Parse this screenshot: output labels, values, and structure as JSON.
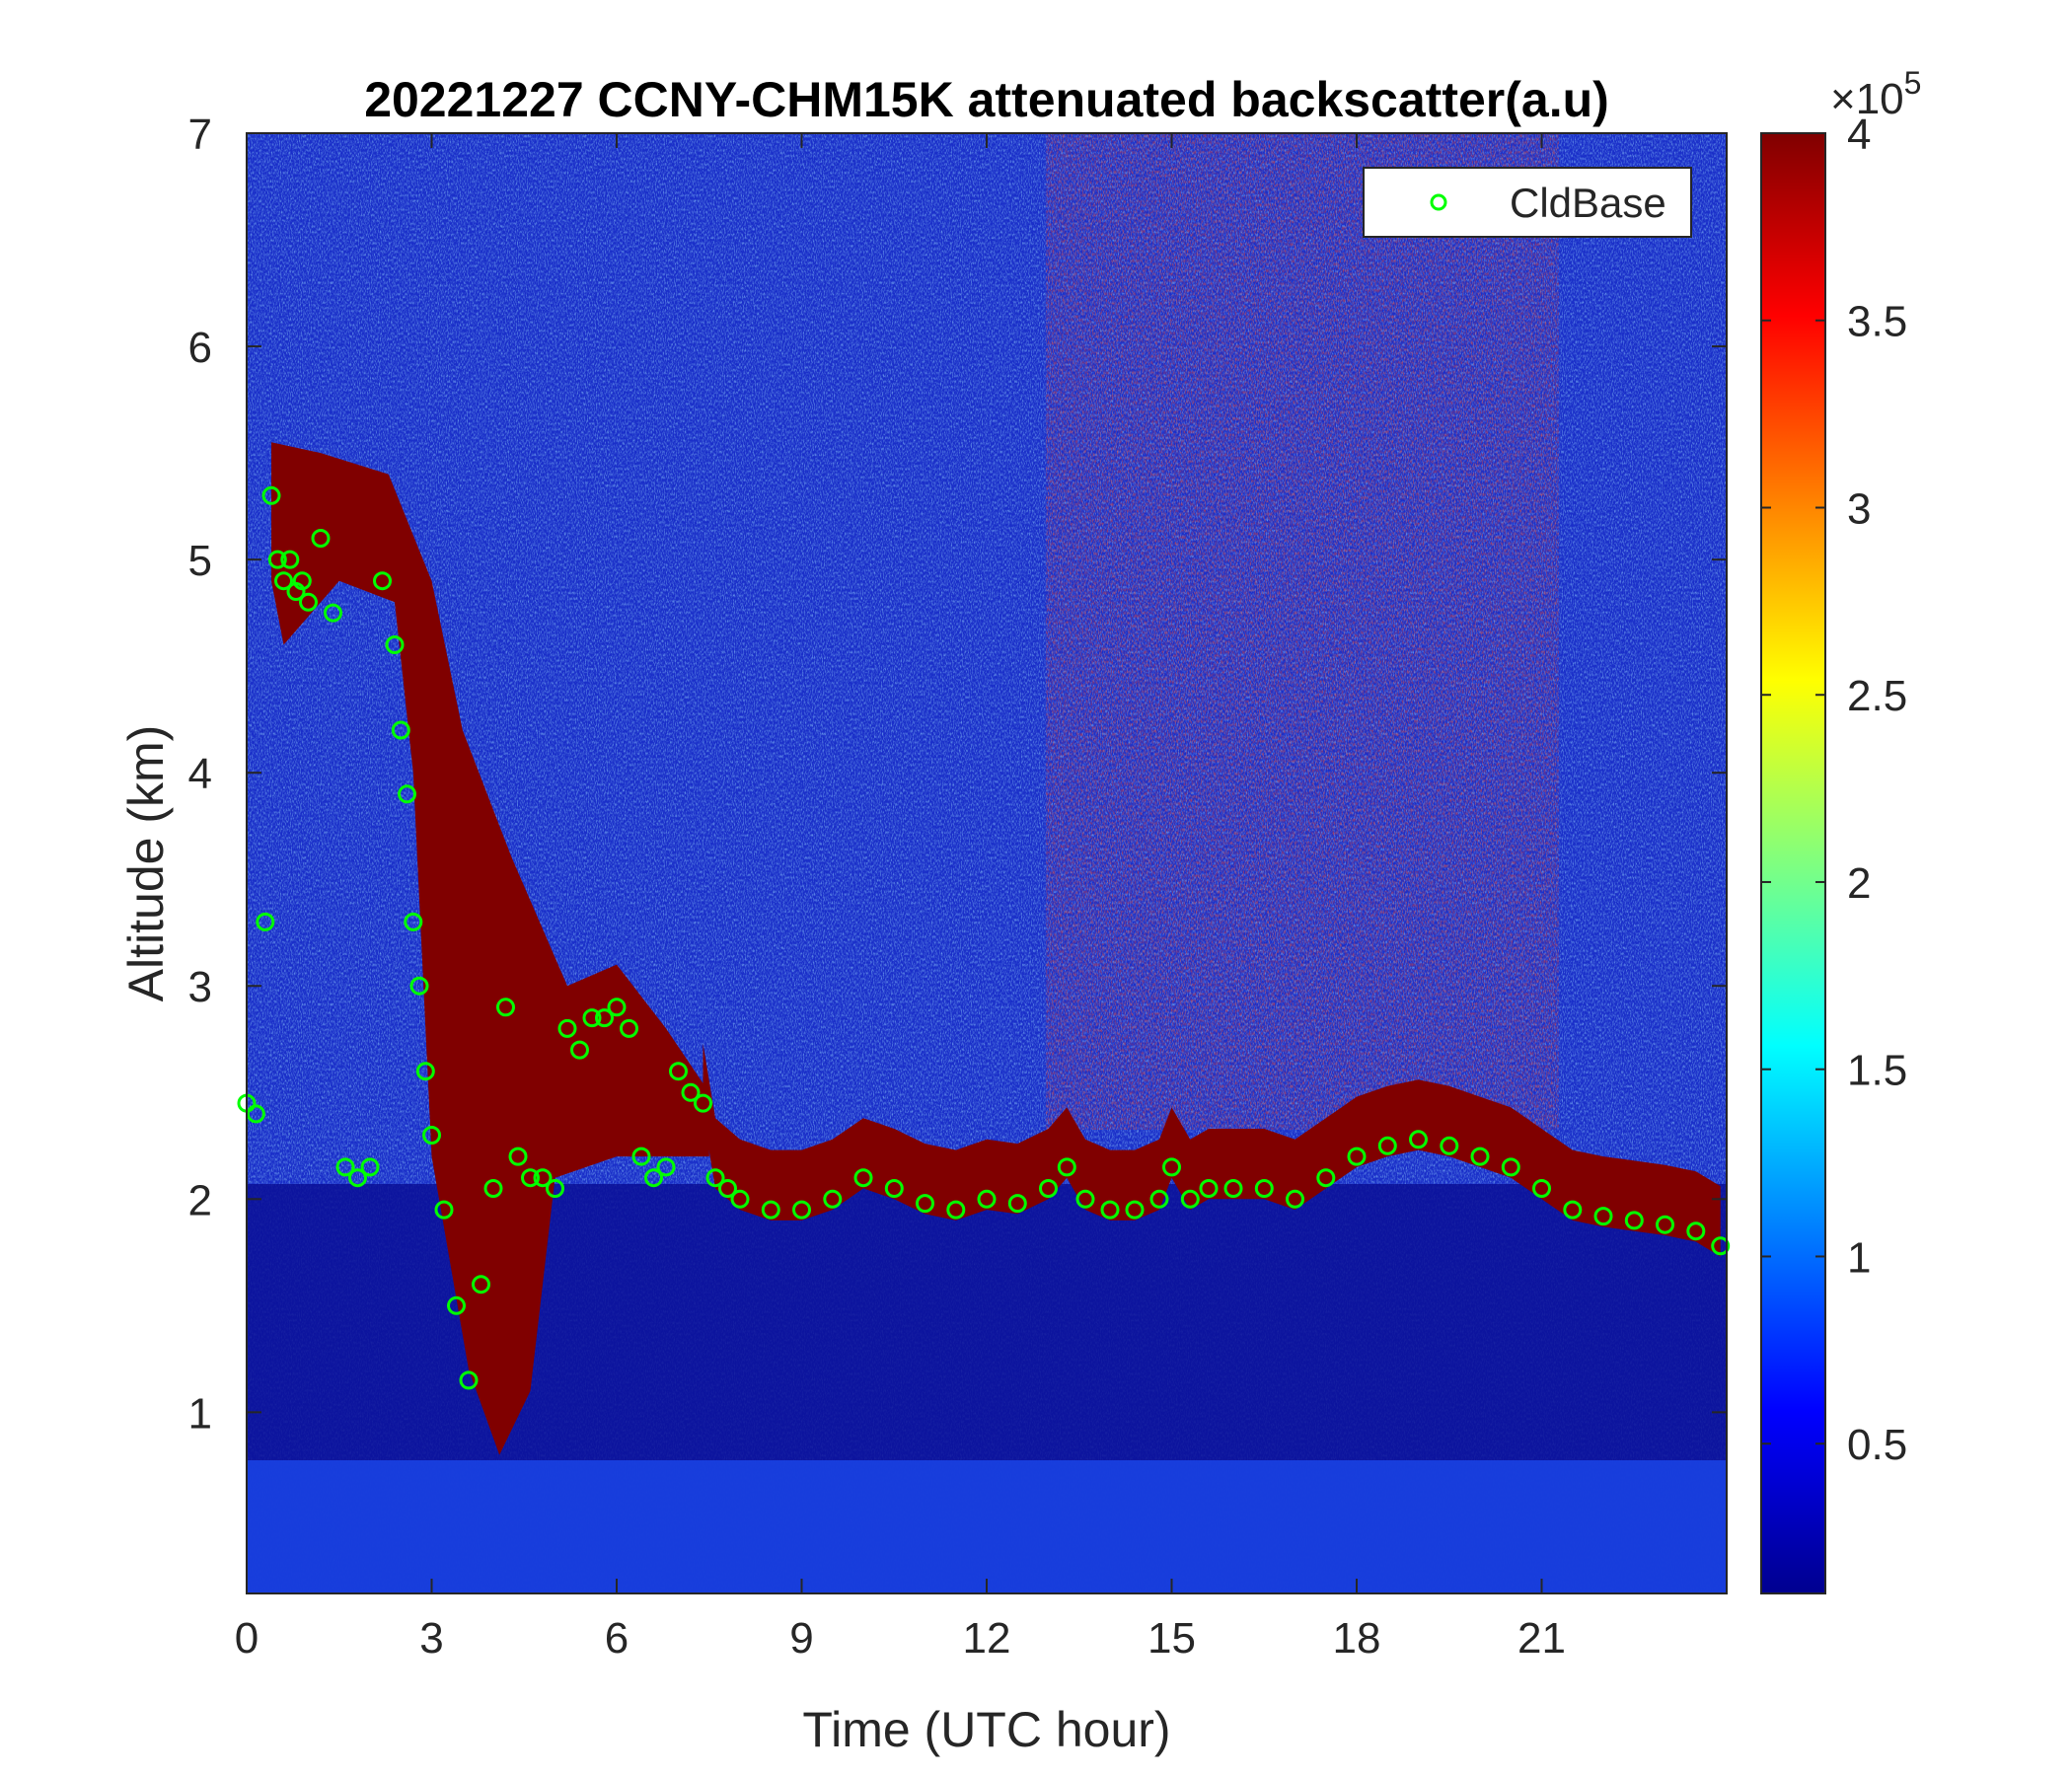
{
  "chart_data": {
    "type": "heatmap",
    "title": "20221227 CCNY-CHM15K attenuated backscatter(a.u)",
    "xlabel": "Time (UTC hour)",
    "ylabel": "Altitude (km)",
    "xlim": [
      0,
      24
    ],
    "ylim": [
      0.15,
      7
    ],
    "xticks": [
      0,
      3,
      6,
      9,
      12,
      15,
      18,
      21
    ],
    "xtick_labels": [
      "0",
      "3",
      "6",
      "9",
      "12",
      "15",
      "18",
      "21"
    ],
    "yticks": [
      1,
      2,
      3,
      4,
      5,
      6,
      7
    ],
    "ytick_labels": [
      "1",
      "2",
      "3",
      "4",
      "5",
      "6",
      "7"
    ],
    "colorbar": {
      "colormap": "jet",
      "range": [
        0.1,
        4
      ],
      "ticks": [
        0.5,
        1,
        1.5,
        2,
        2.5,
        3,
        3.5,
        4
      ],
      "tick_labels": [
        "0.5",
        "1",
        "1.5",
        "2",
        "2.5",
        "3",
        "3.5",
        "4"
      ],
      "multiplier_base": "×10",
      "multiplier_exponent": "5"
    },
    "grid": false,
    "legend": {
      "location": "top-right",
      "entries": [
        "CldBase"
      ]
    },
    "series": [
      {
        "name": "CldBase",
        "marker": "circle",
        "color": "#00ff00",
        "x": [
          0.0,
          0.15,
          0.3,
          0.4,
          0.5,
          0.6,
          0.7,
          0.8,
          0.9,
          1.0,
          1.2,
          1.4,
          1.6,
          1.8,
          2.0,
          2.2,
          2.4,
          2.5,
          2.6,
          2.7,
          2.8,
          2.9,
          3.0,
          3.2,
          3.4,
          3.6,
          3.8,
          4.0,
          4.2,
          4.4,
          4.6,
          4.8,
          5.0,
          5.2,
          5.4,
          5.6,
          5.8,
          6.0,
          6.2,
          6.4,
          6.6,
          6.8,
          7.0,
          7.2,
          7.4,
          7.6,
          7.8,
          8.0,
          8.5,
          9.0,
          9.5,
          10.0,
          10.5,
          11.0,
          11.5,
          12.0,
          12.5,
          13.0,
          13.3,
          13.6,
          14.0,
          14.4,
          14.8,
          15.0,
          15.3,
          15.6,
          16.0,
          16.5,
          17.0,
          17.5,
          18.0,
          18.5,
          19.0,
          19.5,
          20.0,
          20.5,
          21.0,
          21.5,
          22.0,
          22.5,
          23.0,
          23.5,
          23.9
        ],
        "y": [
          2.45,
          2.4,
          3.3,
          5.3,
          5.0,
          4.9,
          5.0,
          4.85,
          4.9,
          4.8,
          5.1,
          4.75,
          2.15,
          2.1,
          2.15,
          4.9,
          4.6,
          4.2,
          3.9,
          3.3,
          3.0,
          2.6,
          2.3,
          1.95,
          1.5,
          1.15,
          1.6,
          2.05,
          2.9,
          2.2,
          2.1,
          2.1,
          2.05,
          2.8,
          2.7,
          2.85,
          2.85,
          2.9,
          2.8,
          2.2,
          2.1,
          2.15,
          2.6,
          2.5,
          2.45,
          2.1,
          2.05,
          2.0,
          1.95,
          1.95,
          2.0,
          2.1,
          2.05,
          1.98,
          1.95,
          2.0,
          1.98,
          2.05,
          2.15,
          2.0,
          1.95,
          1.95,
          2.0,
          2.15,
          2.0,
          2.05,
          2.05,
          2.05,
          2.0,
          2.1,
          2.2,
          2.25,
          2.28,
          2.25,
          2.2,
          2.15,
          2.05,
          1.95,
          1.92,
          1.9,
          1.88,
          1.85,
          1.78
        ]
      }
    ]
  }
}
